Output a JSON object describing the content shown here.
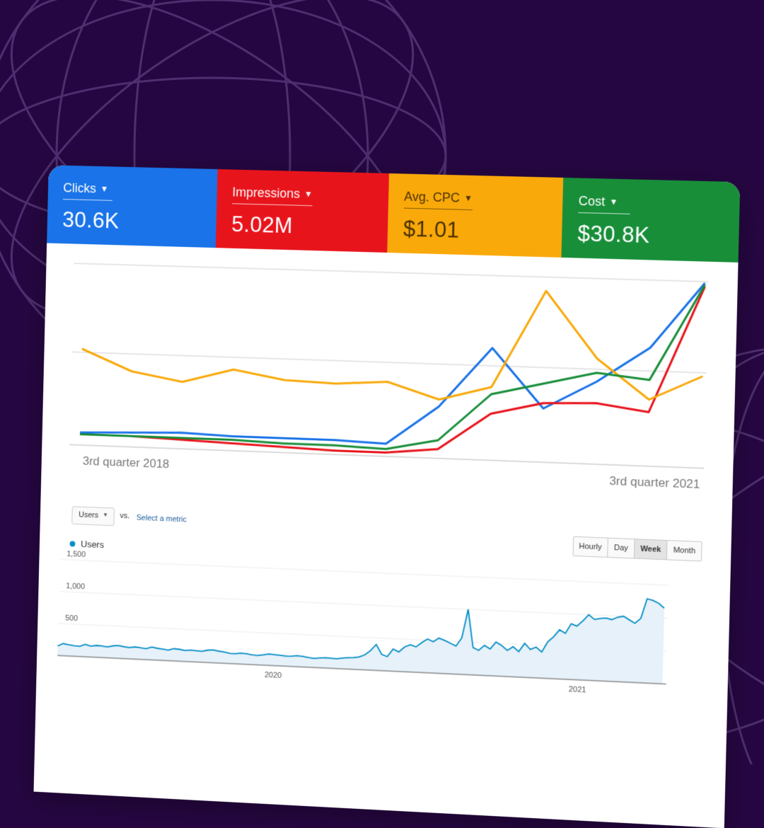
{
  "metrics": [
    {
      "id": "clicks",
      "label": "Clicks",
      "value": "30.6K",
      "color": "#1a73e8"
    },
    {
      "id": "impressions",
      "label": "Impressions",
      "value": "5.02M",
      "color": "#e8141c"
    },
    {
      "id": "cpc",
      "label": "Avg. CPC",
      "value": "$1.01",
      "color": "#f9a90a"
    },
    {
      "id": "cost",
      "label": "Cost",
      "value": "$30.8K",
      "color": "#188e39"
    }
  ],
  "users_panel": {
    "metric_select": "Users",
    "vs": "vs.",
    "select_metric": "Select a metric",
    "granularity": [
      "Hourly",
      "Day",
      "Week",
      "Month"
    ],
    "granularity_selected": "Week",
    "legend": "Users"
  },
  "chart_data": [
    {
      "type": "line",
      "x_tick_labels": [
        "3rd quarter 2018",
        "3rd quarter 2021"
      ],
      "axis_units": "relative (no y-axis labels shown)",
      "ylim": [
        0,
        100
      ],
      "grid": true,
      "series": [
        {
          "name": "Clicks",
          "color": "#1a73e8",
          "values": [
            4,
            5,
            6,
            5,
            5,
            5,
            4,
            26,
            60,
            27,
            43,
            63,
            100
          ]
        },
        {
          "name": "Impressions",
          "color": "#e8141c",
          "values": [
            3,
            3,
            2,
            1,
            0,
            -1,
            -1,
            2,
            23,
            30,
            31,
            27,
            98
          ]
        },
        {
          "name": "Avg. CPC",
          "color": "#f9a90a",
          "values": [
            52,
            40,
            35,
            43,
            38,
            37,
            39,
            30,
            38,
            93,
            56,
            34,
            48
          ]
        },
        {
          "name": "Cost",
          "color": "#188e39",
          "values": [
            3,
            3,
            3,
            3,
            2,
            2,
            1,
            7,
            34,
            41,
            48,
            45,
            99
          ]
        }
      ]
    },
    {
      "type": "area",
      "series": [
        {
          "name": "Users",
          "color": "#058dc7",
          "values": [
            150,
            190,
            175,
            165,
            160,
            195,
            170,
            185,
            180,
            170,
            190,
            200,
            185,
            175,
            190,
            180,
            170,
            200,
            185,
            175,
            165,
            190,
            185,
            170,
            180,
            175,
            170,
            190,
            200,
            185,
            175,
            160,
            155,
            170,
            165,
            150,
            145,
            160,
            175,
            170,
            165,
            155,
            160,
            170,
            165,
            150,
            140,
            150,
            160,
            155,
            150,
            165,
            175,
            180,
            195,
            230,
            300,
            400,
            250,
            220,
            340,
            300,
            380,
            420,
            390,
            460,
            520,
            480,
            540,
            510,
            470,
            430,
            560,
            1000,
            420,
            380,
            460,
            410,
            520,
            470,
            400,
            460,
            390,
            520,
            430,
            470,
            400,
            560,
            640,
            750,
            700,
            850,
            820,
            900,
            1000,
            930,
            950,
            960,
            940,
            980,
            1000,
            950,
            900,
            980,
            1280,
            1260,
            1220,
            1150
          ]
        }
      ],
      "y_ticks": [
        "1,500",
        "1,000",
        "500"
      ],
      "x_ticks": [
        "2020",
        "2021"
      ],
      "ylim": [
        0,
        1500
      ]
    }
  ]
}
